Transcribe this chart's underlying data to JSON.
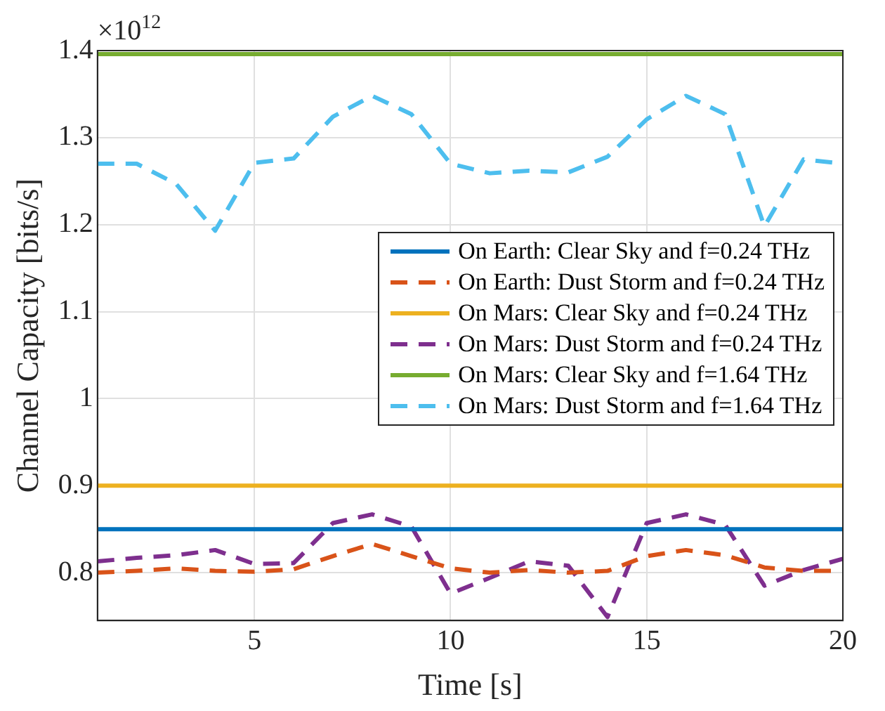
{
  "chart_data": {
    "type": "line",
    "xlabel": "Time [s]",
    "ylabel": "Channel Capacity [bits/s]",
    "annotations": [
      "×10$^{12}$"
    ],
    "x": [
      1,
      2,
      3,
      4,
      5,
      6,
      7,
      8,
      9,
      10,
      11,
      12,
      13,
      14,
      15,
      16,
      17,
      18,
      19,
      20
    ],
    "xlim": [
      1,
      20
    ],
    "xticks": [
      5,
      10,
      15,
      20
    ],
    "ylim": [
      0.745,
      1.4
    ],
    "yticks": [
      0.8,
      0.9,
      1,
      1.1,
      1.2,
      1.3,
      1.4
    ],
    "grid": true,
    "legend": "right",
    "marker": "none",
    "series": [
      {
        "name": "On Earth: Clear Sky and f=0.24 THz",
        "color": "#0072bd",
        "line_style": "solid",
        "values": [
          0.85,
          0.85,
          0.85,
          0.85,
          0.85,
          0.85,
          0.85,
          0.85,
          0.85,
          0.85,
          0.85,
          0.85,
          0.85,
          0.85,
          0.85,
          0.85,
          0.85,
          0.85,
          0.85,
          0.85
        ]
      },
      {
        "name": "On Earth: Dust Storm and f=0.24 THz",
        "color": "#d95319",
        "line_style": "dashed",
        "values": [
          0.8,
          0.802,
          0.805,
          0.802,
          0.801,
          0.804,
          0.819,
          0.833,
          0.819,
          0.805,
          0.8,
          0.803,
          0.8,
          0.802,
          0.819,
          0.826,
          0.82,
          0.806,
          0.802,
          0.802
        ]
      },
      {
        "name": "On Mars: Clear Sky and f=0.24 THz",
        "color": "#edb120",
        "line_style": "solid",
        "values": [
          0.9,
          0.9,
          0.9,
          0.9,
          0.9,
          0.9,
          0.9,
          0.9,
          0.9,
          0.9,
          0.9,
          0.9,
          0.9,
          0.9,
          0.9,
          0.9,
          0.9,
          0.9,
          0.9,
          0.9
        ]
      },
      {
        "name": "On Mars: Dust Storm and f=0.24 THz",
        "color": "#7e2f8e",
        "line_style": "dashed",
        "values": [
          0.813,
          0.817,
          0.82,
          0.826,
          0.81,
          0.811,
          0.857,
          0.867,
          0.853,
          0.776,
          0.794,
          0.813,
          0.808,
          0.749,
          0.857,
          0.867,
          0.855,
          0.785,
          0.803,
          0.816
        ]
      },
      {
        "name": "On Mars: Clear Sky and f=1.64 THz",
        "color": "#77ac30",
        "line_style": "solid",
        "values": [
          1.396,
          1.396,
          1.396,
          1.396,
          1.396,
          1.396,
          1.396,
          1.396,
          1.396,
          1.396,
          1.396,
          1.396,
          1.396,
          1.396,
          1.396,
          1.396,
          1.396,
          1.396,
          1.396,
          1.396
        ]
      },
      {
        "name": "On Mars: Dust Storm and f=1.64 THz",
        "color": "#4dbeee",
        "line_style": "dashed",
        "values": [
          1.27,
          1.27,
          1.247,
          1.193,
          1.271,
          1.276,
          1.324,
          1.348,
          1.327,
          1.27,
          1.259,
          1.262,
          1.26,
          1.278,
          1.321,
          1.348,
          1.327,
          1.198,
          1.275,
          1.27
        ]
      }
    ]
  }
}
